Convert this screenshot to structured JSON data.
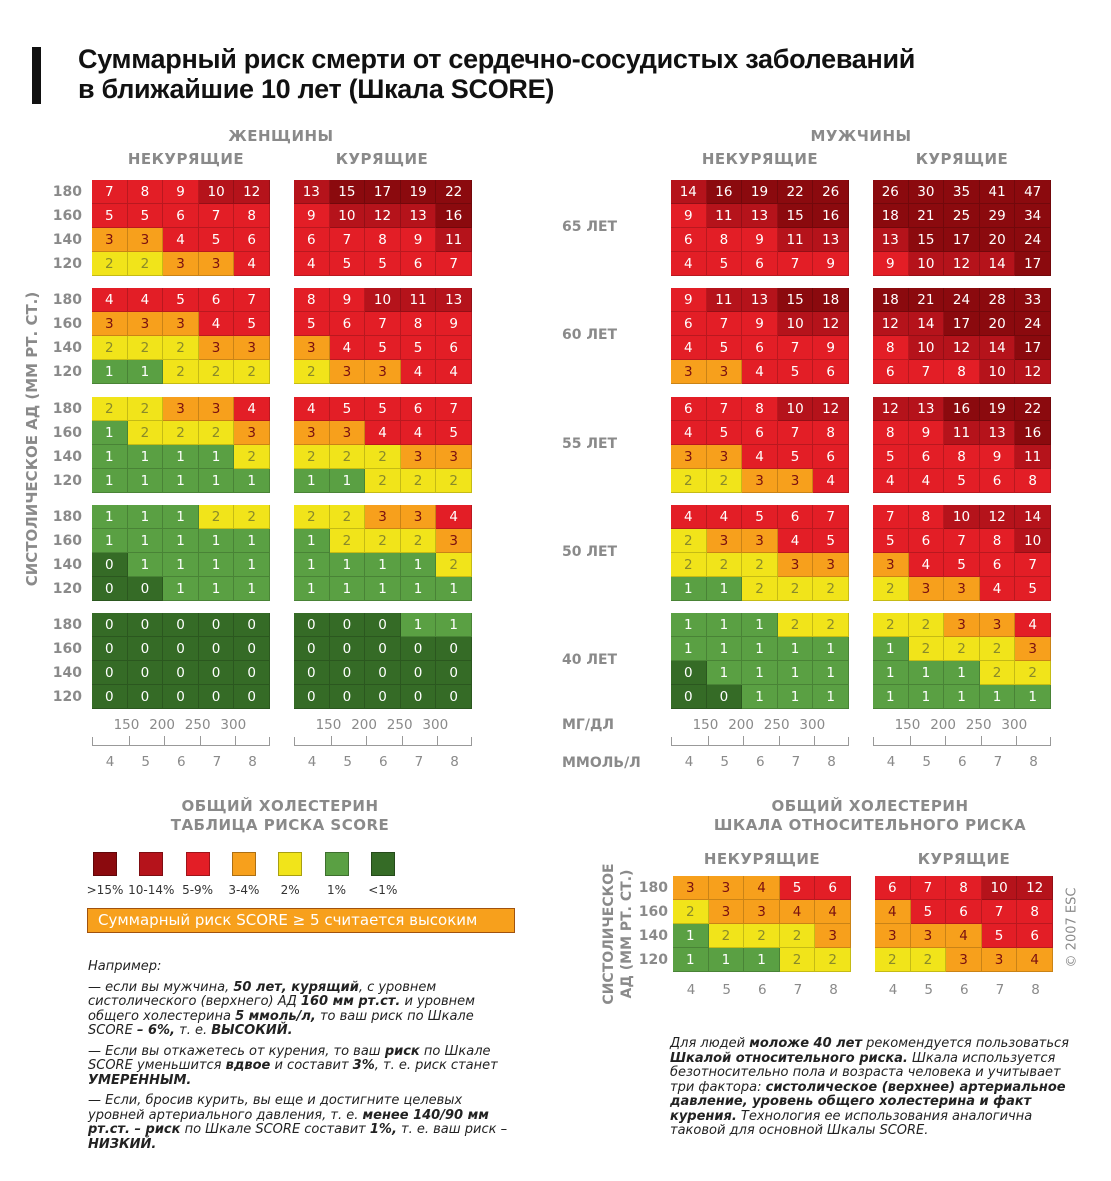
{
  "title": [
    "Суммарный риск смерти от сердечно-сосудистых заболеваний",
    "в ближайшие 10 лет (Шкала SCORE)"
  ],
  "women_label": "ЖЕНЩИНЫ",
  "men_label": "МУЖЧИНЫ",
  "nonsmokers_label": "НЕКУРЯЩИЕ",
  "smokers_label": "КУРЯЩИЕ",
  "y_axis_label": "СИСТОЛИЧЕСКОЕ АД (ММ РТ. СТ.)",
  "unit_mgdl": "МГ/ДЛ",
  "unit_mmol": "ММОЛЬ/Л",
  "colors": {
    "ge15": "#8b0a0e",
    "r10": "#b5131b",
    "r5": "#e31e26",
    "r3": "#f7a01c",
    "r2": "#f1e41a",
    "r1": "#5aa043",
    "r0": "#356b26"
  },
  "chart_data": {
    "type": "heatmap",
    "title": "Суммарный риск смерти от сердечно-сосудистых заболеваний в ближайшие 10 лет (Шкала SCORE)",
    "ylabel": "СИСТОЛИЧЕСКОЕ АД (ММ РТ. СТ.)",
    "xlabel": "ОБЩИЙ ХОЛЕСТЕРИН",
    "rows": [
      "180",
      "160",
      "140",
      "120"
    ],
    "cols_mmol": [
      "4",
      "5",
      "6",
      "7",
      "8"
    ],
    "cols_mgdl": [
      "150",
      "200",
      "250",
      "300"
    ],
    "ages": [
      "65 ЛЕТ",
      "60 ЛЕТ",
      "55 ЛЕТ",
      "50 ЛЕТ",
      "40 ЛЕТ"
    ],
    "women_nonsmokers": [
      [
        [
          7,
          8,
          9,
          10,
          12
        ],
        [
          5,
          5,
          6,
          7,
          8
        ],
        [
          3,
          3,
          4,
          5,
          6
        ],
        [
          2,
          2,
          3,
          3,
          4
        ]
      ],
      [
        [
          4,
          4,
          5,
          6,
          7
        ],
        [
          3,
          3,
          3,
          4,
          5
        ],
        [
          2,
          2,
          2,
          3,
          3
        ],
        [
          1,
          1,
          2,
          2,
          2
        ]
      ],
      [
        [
          2,
          2,
          3,
          3,
          4
        ],
        [
          1,
          2,
          2,
          2,
          3
        ],
        [
          1,
          1,
          1,
          1,
          2
        ],
        [
          1,
          1,
          1,
          1,
          1
        ]
      ],
      [
        [
          1,
          1,
          1,
          2,
          2
        ],
        [
          1,
          1,
          1,
          1,
          1
        ],
        [
          0,
          1,
          1,
          1,
          1
        ],
        [
          0,
          0,
          1,
          1,
          1
        ]
      ],
      [
        [
          0,
          0,
          0,
          0,
          0
        ],
        [
          0,
          0,
          0,
          0,
          0
        ],
        [
          0,
          0,
          0,
          0,
          0
        ],
        [
          0,
          0,
          0,
          0,
          0
        ]
      ]
    ],
    "women_smokers": [
      [
        [
          13,
          15,
          17,
          19,
          22
        ],
        [
          9,
          10,
          12,
          13,
          16
        ],
        [
          6,
          7,
          8,
          9,
          11
        ],
        [
          4,
          5,
          5,
          6,
          7
        ]
      ],
      [
        [
          8,
          9,
          10,
          11,
          13
        ],
        [
          5,
          6,
          7,
          8,
          9
        ],
        [
          3,
          4,
          5,
          5,
          6
        ],
        [
          2,
          3,
          3,
          4,
          4
        ]
      ],
      [
        [
          4,
          5,
          5,
          6,
          7
        ],
        [
          3,
          3,
          4,
          4,
          5
        ],
        [
          2,
          2,
          2,
          3,
          3
        ],
        [
          1,
          1,
          2,
          2,
          2
        ]
      ],
      [
        [
          2,
          2,
          3,
          3,
          4
        ],
        [
          1,
          2,
          2,
          2,
          3
        ],
        [
          1,
          1,
          1,
          1,
          2
        ],
        [
          1,
          1,
          1,
          1,
          1
        ]
      ],
      [
        [
          0,
          0,
          0,
          1,
          1
        ],
        [
          0,
          0,
          0,
          0,
          0
        ],
        [
          0,
          0,
          0,
          0,
          0
        ],
        [
          0,
          0,
          0,
          0,
          0
        ]
      ]
    ],
    "men_nonsmokers": [
      [
        [
          14,
          16,
          19,
          22,
          26
        ],
        [
          9,
          11,
          13,
          15,
          16
        ],
        [
          6,
          8,
          9,
          11,
          13
        ],
        [
          4,
          5,
          6,
          7,
          9
        ]
      ],
      [
        [
          9,
          11,
          13,
          15,
          18
        ],
        [
          6,
          7,
          9,
          10,
          12
        ],
        [
          4,
          5,
          6,
          7,
          9
        ],
        [
          3,
          3,
          4,
          5,
          6
        ]
      ],
      [
        [
          6,
          7,
          8,
          10,
          12
        ],
        [
          4,
          5,
          6,
          7,
          8
        ],
        [
          3,
          3,
          4,
          5,
          6
        ],
        [
          2,
          2,
          3,
          3,
          4
        ]
      ],
      [
        [
          4,
          4,
          5,
          6,
          7
        ],
        [
          2,
          3,
          3,
          4,
          5
        ],
        [
          2,
          2,
          2,
          3,
          3
        ],
        [
          1,
          1,
          2,
          2,
          2
        ]
      ],
      [
        [
          1,
          1,
          1,
          2,
          2
        ],
        [
          1,
          1,
          1,
          1,
          1
        ],
        [
          0,
          1,
          1,
          1,
          1
        ],
        [
          0,
          0,
          1,
          1,
          1
        ]
      ]
    ],
    "men_smokers": [
      [
        [
          26,
          30,
          35,
          41,
          47
        ],
        [
          18,
          21,
          25,
          29,
          34
        ],
        [
          13,
          15,
          17,
          20,
          24
        ],
        [
          9,
          10,
          12,
          14,
          17
        ]
      ],
      [
        [
          18,
          21,
          24,
          28,
          33
        ],
        [
          12,
          14,
          17,
          20,
          24
        ],
        [
          8,
          10,
          12,
          14,
          17
        ],
        [
          6,
          7,
          8,
          10,
          12
        ]
      ],
      [
        [
          12,
          13,
          16,
          19,
          22
        ],
        [
          8,
          9,
          11,
          13,
          16
        ],
        [
          5,
          6,
          8,
          9,
          11
        ],
        [
          4,
          4,
          5,
          6,
          8
        ]
      ],
      [
        [
          7,
          8,
          10,
          12,
          14
        ],
        [
          5,
          6,
          7,
          8,
          10
        ],
        [
          3,
          4,
          5,
          6,
          7
        ],
        [
          2,
          3,
          3,
          4,
          5
        ]
      ],
      [
        [
          2,
          2,
          3,
          3,
          4
        ],
        [
          1,
          2,
          2,
          2,
          3
        ],
        [
          1,
          1,
          1,
          2,
          2
        ],
        [
          1,
          1,
          1,
          1,
          1
        ]
      ]
    ],
    "relative_nonsmokers": [
      [
        3,
        3,
        4,
        5,
        6
      ],
      [
        2,
        3,
        3,
        4,
        4
      ],
      [
        1,
        2,
        2,
        2,
        3
      ],
      [
        1,
        1,
        1,
        2,
        2
      ]
    ],
    "relative_smokers": [
      [
        6,
        7,
        8,
        10,
        12
      ],
      [
        4,
        5,
        6,
        7,
        8
      ],
      [
        3,
        3,
        4,
        5,
        6
      ],
      [
        2,
        2,
        3,
        3,
        4
      ]
    ]
  },
  "score_table": {
    "heading": [
      "ОБЩИЙ ХОЛЕСТЕРИН",
      "ТАБЛИЦА РИСКА SCORE"
    ],
    "legend": [
      {
        "label": ">15%",
        "color": "#8b0a0e"
      },
      {
        "label": "10-14%",
        "color": "#b5131b"
      },
      {
        "label": "5-9%",
        "color": "#e31e26"
      },
      {
        "label": "3-4%",
        "color": "#f7a01c"
      },
      {
        "label": "2%",
        "color": "#f1e41a"
      },
      {
        "label": "1%",
        "color": "#5aa043"
      },
      {
        "label": "<1%",
        "color": "#356b26"
      }
    ],
    "high_note": "Суммарный риск SCORE ≥ 5 считается высоким"
  },
  "relative": {
    "heading": [
      "ОБЩИЙ ХОЛЕСТЕРИН",
      "ШКАЛА ОТНОСИТЕЛЬНОГО РИСКА"
    ],
    "y_label": [
      "СИСТОЛИЧЕСКОЕ",
      "АД (ММ РТ. СТ.)"
    ],
    "copyright": "© 2007 ESC"
  },
  "example": {
    "intro": "Например:",
    "paragraphs": [
      [
        {
          "t": "— если вы мужчина, "
        },
        {
          "t": "50 лет, курящий",
          "b": 1
        },
        {
          "t": ", с уровнем систолического (верхнего) АД "
        },
        {
          "t": "160 мм рт.ст.",
          "b": 1
        },
        {
          "t": " и уровнем общего холестерина "
        },
        {
          "t": "5 ммоль/л,",
          "b": 1
        },
        {
          "t": "  то ваш риск по Шкале SCORE "
        },
        {
          "t": "– 6%,",
          "b": 1
        },
        {
          "t": " т. е. "
        },
        {
          "t": "ВЫСОКИЙ.",
          "b": 1
        }
      ],
      [
        {
          "t": "— Если вы откажетесь от курения, то ваш "
        },
        {
          "t": "риск",
          "b": 1
        },
        {
          "t": " по Шкале SCORE уменьшится "
        },
        {
          "t": "вдвое",
          "b": 1
        },
        {
          "t": " и составит "
        },
        {
          "t": "3%",
          "b": 1
        },
        {
          "t": ", т. е. риск станет "
        },
        {
          "t": "УМЕРЕННЫМ.",
          "b": 1
        }
      ],
      [
        {
          "t": "— Если, бросив курить, вы еще и достигните целевых уровней артериального давления, т. е. "
        },
        {
          "t": "менее 140/90 мм рт.ст. – риск",
          "b": 1
        },
        {
          "t": " по Шкале SCORE составит "
        },
        {
          "t": "1%,",
          "b": 1
        },
        {
          "t": " т. е. ваш риск – "
        },
        {
          "t": "НИЗКИЙ.",
          "b": 1
        }
      ]
    ]
  },
  "relative_note": [
    {
      "t": "Для людей "
    },
    {
      "t": "моложе 40 лет",
      "b": 1
    },
    {
      "t": " рекомендуется пользоваться "
    },
    {
      "t": "Шкалой относительного риска.",
      "b": 1
    },
    {
      "t": " Шкала используется безотносительно пола и возраста человека и учитывает три фактора: "
    },
    {
      "t": "систолическое (верхнее) артериальное давление, уровень общего холестерина и факт курения.",
      "b": 1
    },
    {
      "t": " Технология ее использования аналогична таковой для основной Шкалы SCORE."
    }
  ]
}
